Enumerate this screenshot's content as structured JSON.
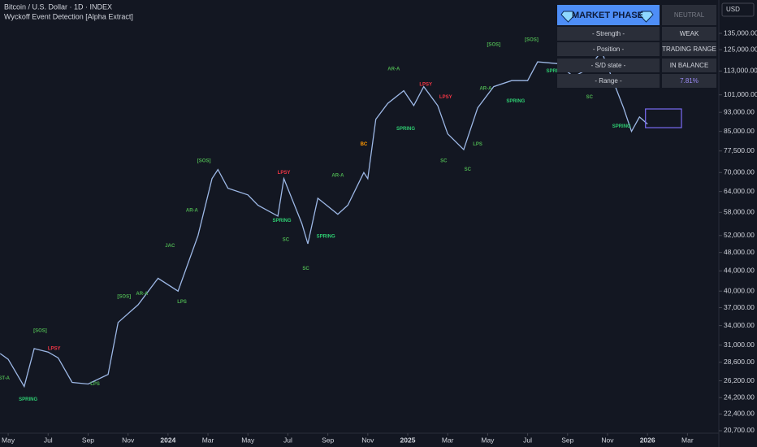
{
  "chart_data": {
    "type": "line",
    "title": "Bitcoin / U.S. Dollar · 1D · INDEX",
    "subtitle": "Wyckoff Event Detection [Alpha Extract]",
    "currency": "USD",
    "log_scale": true,
    "grid": false,
    "xlim": [
      -0.41,
      35.53
    ],
    "xticks": [
      {
        "value": 0,
        "label": "May"
      },
      {
        "value": 2,
        "label": "Jul"
      },
      {
        "value": 4,
        "label": "Sep"
      },
      {
        "value": 6,
        "label": "Nov"
      },
      {
        "value": 8,
        "label": "2024"
      },
      {
        "value": 10,
        "label": "Mar"
      },
      {
        "value": 12,
        "label": "May"
      },
      {
        "value": 14,
        "label": "Jul"
      },
      {
        "value": 16,
        "label": "Sep"
      },
      {
        "value": 18,
        "label": "Nov"
      },
      {
        "value": 20,
        "label": "2025"
      },
      {
        "value": 22,
        "label": "Mar"
      },
      {
        "value": 24,
        "label": "May"
      },
      {
        "value": 26,
        "label": "Jul"
      },
      {
        "value": 28,
        "label": "Sep"
      },
      {
        "value": 30,
        "label": "Nov"
      },
      {
        "value": 32,
        "label": "2026"
      },
      {
        "value": 34,
        "label": "Mar"
      }
    ],
    "ylim": [
      20540,
      158000
    ],
    "yticks": [
      {
        "value": 135000,
        "label": "135,000.00"
      },
      {
        "value": 125000,
        "label": "125,000.00"
      },
      {
        "value": 113000,
        "label": "113,000.00"
      },
      {
        "value": 101000,
        "label": "101,000.00"
      },
      {
        "value": 93000,
        "label": "93,000.00"
      },
      {
        "value": 85000,
        "label": "85,000.00"
      },
      {
        "value": 77500,
        "label": "77,500.00"
      },
      {
        "value": 70000,
        "label": "70,000.00"
      },
      {
        "value": 64000,
        "label": "64,000.00"
      },
      {
        "value": 58000,
        "label": "58,000.00"
      },
      {
        "value": 52000,
        "label": "52,000.00"
      },
      {
        "value": 48000,
        "label": "48,000.00"
      },
      {
        "value": 44000,
        "label": "44,000.00"
      },
      {
        "value": 40000,
        "label": "40,000.00"
      },
      {
        "value": 37000,
        "label": "37,000.00"
      },
      {
        "value": 34000,
        "label": "34,000.00"
      },
      {
        "value": 31000,
        "label": "31,000.00"
      },
      {
        "value": 28600,
        "label": "28,600.00"
      },
      {
        "value": 26200,
        "label": "26,200.00"
      },
      {
        "value": 24200,
        "label": "24,200.00"
      },
      {
        "value": 22400,
        "label": "22,400.00"
      },
      {
        "value": 20700,
        "label": "20,700.00"
      }
    ],
    "series": [
      {
        "color": "#9db8e6",
        "x": [
          -0.4,
          0,
          0.8,
          1.3,
          2,
          2.5,
          3.2,
          4,
          5,
          5.5,
          6.5,
          7.5,
          8.5,
          9.5,
          10.2,
          10.5,
          11,
          12,
          12.5,
          13.5,
          13.8,
          14.7,
          15,
          15.5,
          16.5,
          17,
          17.8,
          18,
          18.4,
          19,
          19.8,
          20.3,
          20.8,
          21.5,
          22,
          22.8,
          23.5,
          24.3,
          25.2,
          26,
          26.5,
          27.5,
          28.3,
          29,
          29.7,
          30.2,
          30.8,
          31.2,
          31.6,
          32
        ],
        "values": [
          29800,
          29000,
          25500,
          30500,
          30000,
          29200,
          26000,
          25800,
          27000,
          34500,
          37500,
          42500,
          40000,
          52000,
          68000,
          71000,
          65000,
          63000,
          60000,
          57000,
          68000,
          55000,
          50000,
          62000,
          57500,
          60000,
          70000,
          68000,
          90000,
          97000,
          103000,
          96000,
          105000,
          96000,
          84000,
          78000,
          95000,
          105000,
          108000,
          108000,
          118000,
          117000,
          110000,
          114000,
          124000,
          110000,
          95000,
          85000,
          91000,
          88000
        ]
      }
    ],
    "range_box": {
      "x": [
        31.9,
        33.7
      ],
      "y": [
        86500,
        94500
      ],
      "color": "#7b6cf6"
    },
    "annotations": [
      {
        "text": "ST-A",
        "x": -0.2,
        "y": 26500,
        "color": "#4caf50"
      },
      {
        "text": "SPRING",
        "x": 1.0,
        "y": 24000,
        "color": "#2ecc71"
      },
      {
        "text": "[SOS]",
        "x": 1.6,
        "y": 33200,
        "color": "#4caf50"
      },
      {
        "text": "LPSY",
        "x": 2.3,
        "y": 30500,
        "color": "#f23645"
      },
      {
        "text": "LPS",
        "x": 4.35,
        "y": 25800,
        "color": "#4caf50"
      },
      {
        "text": "[SOS]",
        "x": 5.8,
        "y": 39000,
        "color": "#4caf50"
      },
      {
        "text": "AR-A",
        "x": 6.7,
        "y": 39500,
        "color": "#4caf50"
      },
      {
        "text": "JAC",
        "x": 8.1,
        "y": 49500,
        "color": "#4caf50"
      },
      {
        "text": "LPS",
        "x": 8.7,
        "y": 38000,
        "color": "#4caf50"
      },
      {
        "text": "AR-A",
        "x": 9.2,
        "y": 58500,
        "color": "#4caf50"
      },
      {
        "text": "[SOS]",
        "x": 9.8,
        "y": 74000,
        "color": "#4caf50"
      },
      {
        "text": "LPSY",
        "x": 13.8,
        "y": 70000,
        "color": "#f23645"
      },
      {
        "text": "SPRING",
        "x": 13.7,
        "y": 55800,
        "color": "#2ecc71"
      },
      {
        "text": "SC",
        "x": 13.9,
        "y": 51000,
        "color": "#4caf50"
      },
      {
        "text": "SC",
        "x": 14.9,
        "y": 44500,
        "color": "#4caf50"
      },
      {
        "text": "SPRING",
        "x": 15.9,
        "y": 51800,
        "color": "#2ecc71"
      },
      {
        "text": "AR-A",
        "x": 16.5,
        "y": 69000,
        "color": "#4caf50"
      },
      {
        "text": "BC",
        "x": 17.8,
        "y": 80000,
        "color": "#ff9800"
      },
      {
        "text": "AR-A",
        "x": 19.3,
        "y": 114000,
        "color": "#4caf50"
      },
      {
        "text": "SPRING",
        "x": 19.9,
        "y": 86000,
        "color": "#2ecc71"
      },
      {
        "text": "LPSY",
        "x": 20.9,
        "y": 106000,
        "color": "#f23645"
      },
      {
        "text": "LPSY",
        "x": 21.9,
        "y": 100000,
        "color": "#f23645"
      },
      {
        "text": "SC",
        "x": 21.8,
        "y": 74000,
        "color": "#4caf50"
      },
      {
        "text": "SC",
        "x": 23.0,
        "y": 71000,
        "color": "#4caf50"
      },
      {
        "text": "LPS",
        "x": 23.5,
        "y": 80000,
        "color": "#4caf50"
      },
      {
        "text": "AR-A",
        "x": 23.9,
        "y": 104000,
        "color": "#4caf50"
      },
      {
        "text": "[SOS]",
        "x": 24.3,
        "y": 128000,
        "color": "#4caf50"
      },
      {
        "text": "SPRING",
        "x": 25.4,
        "y": 98000,
        "color": "#2ecc71"
      },
      {
        "text": "[SOS]",
        "x": 26.2,
        "y": 131000,
        "color": "#4caf50"
      },
      {
        "text": "SPRING",
        "x": 27.4,
        "y": 113000,
        "color": "#2ecc71"
      },
      {
        "text": "SC",
        "x": 29.1,
        "y": 100000,
        "color": "#4caf50"
      },
      {
        "text": "SPRING",
        "x": 30.7,
        "y": 87000,
        "color": "#2ecc71"
      }
    ]
  },
  "phase_table": {
    "header": [
      "MARKET PHASE",
      "NEUTRAL"
    ],
    "rows": [
      [
        "- Strength -",
        "WEAK"
      ],
      [
        "- Position -",
        "TRADING RANGE"
      ],
      [
        "- S/D state -",
        "IN BALANCE"
      ],
      [
        "- Range -",
        "7.81%"
      ]
    ]
  }
}
